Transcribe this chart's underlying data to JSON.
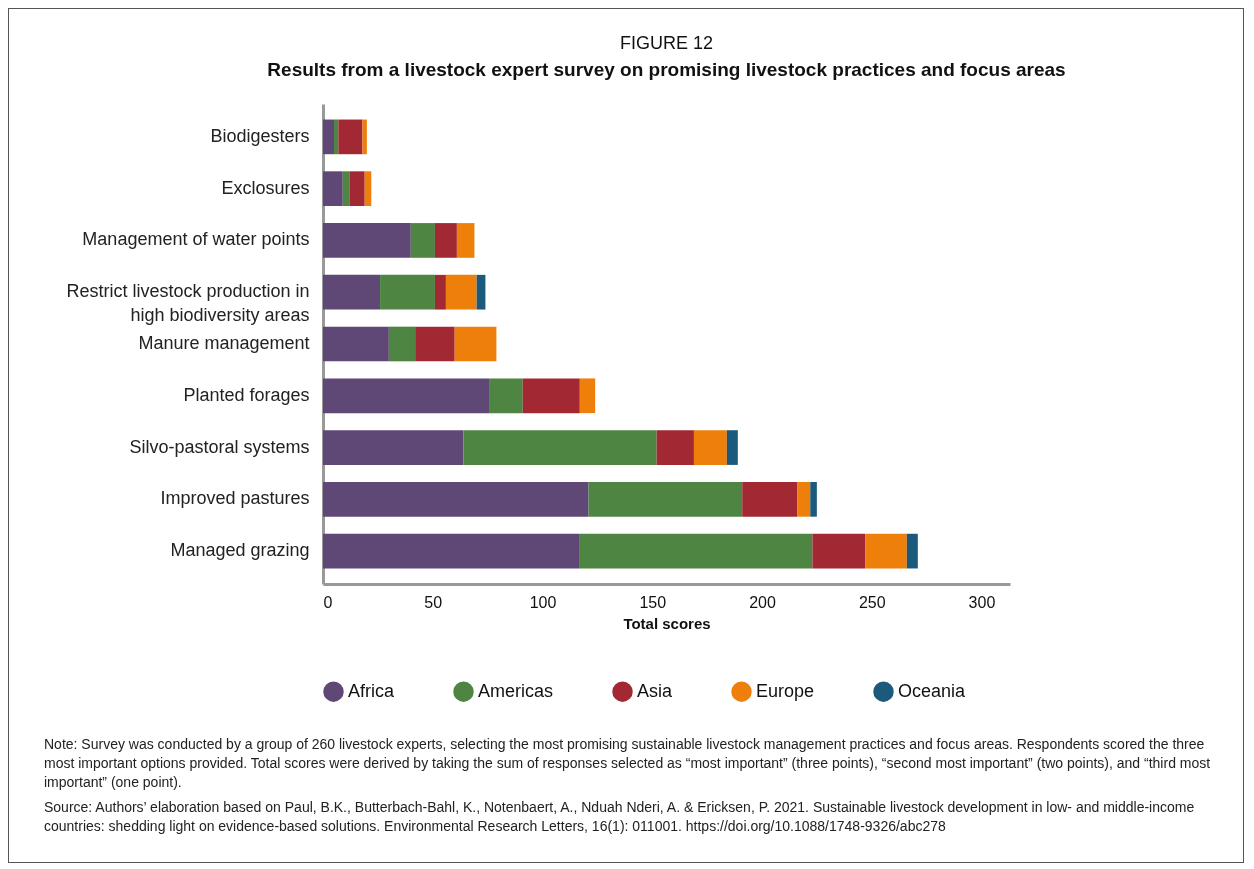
{
  "chart_data": {
    "type": "bar",
    "orientation": "horizontal",
    "stacked": true,
    "title": "FIGURE 12",
    "subtitle": "Results from a livestock expert survey on promising livestock practices and focus areas",
    "xlabel": "Total scores",
    "categories": [
      "Biodigesters",
      "Exclosures",
      "Management of water points",
      "Restrict livestock production in high biodiversity areas",
      "Manure management",
      "Planted forages",
      "Silvo-pastoral systems",
      "Improved pastures",
      "Managed grazing"
    ],
    "series": [
      {
        "name": "Africa",
        "color": "#5f4876",
        "values": [
          5,
          9,
          40,
          26,
          30,
          76,
          64,
          121,
          117
        ]
      },
      {
        "name": "Americas",
        "color": "#4e8542",
        "values": [
          2,
          3,
          11,
          25,
          12,
          15,
          88,
          70,
          106
        ]
      },
      {
        "name": "Asia",
        "color": "#a22834",
        "values": [
          11,
          7,
          10,
          5,
          18,
          26,
          17,
          25,
          24
        ]
      },
      {
        "name": "Europe",
        "color": "#ef7f0b",
        "values": [
          2,
          3,
          8,
          14,
          19,
          7,
          15,
          6,
          19
        ]
      },
      {
        "name": "Oceania",
        "color": "#1c5a7d",
        "values": [
          null,
          null,
          null,
          4,
          null,
          null,
          5,
          3,
          5
        ]
      }
    ],
    "xlim": [
      0,
      313
    ],
    "xticks": [
      0,
      50,
      100,
      150,
      200,
      250,
      300
    ],
    "grid": false,
    "legend": "bottom",
    "annotations": [
      "Note: Survey was conducted by a group of 260 livestock experts, selecting the most promising sustainable livestock management practices and focus areas. Respondents scored the three most important options provided. Total scores were derived by taking the sum of responses selected as “most important” (three points), “second most important” (two points), and “third most important” (one point).",
      "Source: Authors’ elaboration based on Paul, B.K., Butterbach-Bahl, K., Notenbaert, A., Nduah Nderi, A. & Ericksen, P. 2021. Sustainable livestock development in low- and middle-income countries: shedding light on evidence-based solutions. Environmental Research Letters, 16(1): 011001. https://doi.org/10.1088/1748-9326/abc278"
    ]
  }
}
